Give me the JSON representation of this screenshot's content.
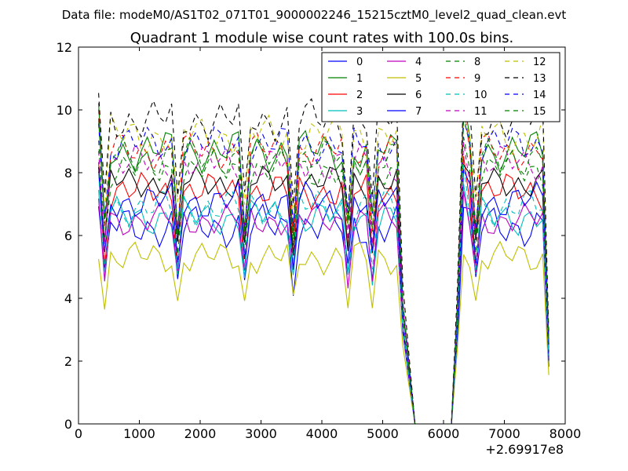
{
  "chart_data": {
    "type": "line",
    "suptitle": "Data file: modeM0/AS1T02_071T01_9000002246_15215cztM0_level2_quad_clean.evt",
    "title": "Quadrant 1 module wise count rates with 100.0s bins.",
    "xlabel": "",
    "ylabel": "",
    "x_offset_label": "+2.69917e8",
    "xlim": [
      0,
      8000
    ],
    "ylim": [
      0,
      12
    ],
    "x_ticks": [
      0,
      1000,
      2000,
      3000,
      4000,
      5000,
      6000,
      7000,
      8000
    ],
    "y_ticks": [
      0,
      2,
      4,
      6,
      8,
      10,
      12
    ],
    "x_tick_labels": [
      "0",
      "1000",
      "2000",
      "3000",
      "4000",
      "5000",
      "6000",
      "7000",
      "8000"
    ],
    "y_tick_labels": [
      "0",
      "2",
      "4",
      "6",
      "8",
      "10",
      "12"
    ],
    "grid": false,
    "legend_position": "top-right",
    "legend_columns": 4,
    "segments": [
      {
        "x_start": 330,
        "x_end": 5330,
        "step": 100
      },
      {
        "x_start": 5530,
        "x_end": 6130,
        "step": 100
      },
      {
        "x_start": 6230,
        "x_end": 7730,
        "step": 100
      }
    ],
    "series": [
      {
        "name": "0",
        "color": "#0000ff",
        "dash": "solid",
        "base": 6.3,
        "amp": 0.45,
        "phase": 0
      },
      {
        "name": "1",
        "color": "#008000",
        "dash": "solid",
        "base": 8.7,
        "amp": 0.45,
        "phase": 1
      },
      {
        "name": "2",
        "color": "#ff0000",
        "dash": "solid",
        "base": 7.4,
        "amp": 0.4,
        "phase": 2
      },
      {
        "name": "3",
        "color": "#00bfbf",
        "dash": "solid",
        "base": 6.6,
        "amp": 0.4,
        "phase": 3
      },
      {
        "name": "4",
        "color": "#bf00bf",
        "dash": "solid",
        "base": 6.5,
        "amp": 0.35,
        "phase": 4
      },
      {
        "name": "5",
        "color": "#bfbf00",
        "dash": "solid",
        "base": 5.3,
        "amp": 0.35,
        "phase": 5
      },
      {
        "name": "6",
        "color": "#000000",
        "dash": "solid",
        "base": 7.7,
        "amp": 0.35,
        "phase": 6
      },
      {
        "name": "7",
        "color": "#0000ff",
        "dash": "solid",
        "base": 7.1,
        "amp": 0.4,
        "phase": 7
      },
      {
        "name": "8",
        "color": "#008000",
        "dash": "dashed",
        "base": 8.1,
        "amp": 0.4,
        "phase": 8
      },
      {
        "name": "9",
        "color": "#ff0000",
        "dash": "dashed",
        "base": 8.7,
        "amp": 0.4,
        "phase": 9
      },
      {
        "name": "10",
        "color": "#00bfbf",
        "dash": "dashed",
        "base": 6.9,
        "amp": 0.4,
        "phase": 10
      },
      {
        "name": "11",
        "color": "#bf00bf",
        "dash": "dashed",
        "base": 8.3,
        "amp": 0.4,
        "phase": 11
      },
      {
        "name": "12",
        "color": "#bfbf00",
        "dash": "dashed",
        "base": 9.2,
        "amp": 0.45,
        "phase": 12
      },
      {
        "name": "13",
        "color": "#000000",
        "dash": "dashed",
        "base": 9.7,
        "amp": 0.45,
        "phase": 13
      },
      {
        "name": "14",
        "color": "#0000ff",
        "dash": "dashed",
        "base": 8.9,
        "amp": 0.4,
        "phase": 14
      },
      {
        "name": "15",
        "color": "#008000",
        "dash": "dashed",
        "base": 8.5,
        "amp": 0.4,
        "phase": 15
      }
    ],
    "special_points": {
      "low_dip_x": [
        430,
        1630,
        2730,
        3530,
        4430,
        4830,
        6530
      ],
      "low_dip_factor": 0.72,
      "first_point_boost": 1.1,
      "rise_last_x": 5330,
      "rise_last_factor": 0.45,
      "zero_window": [
        5530,
        6130
      ],
      "post_gap_start_x": 6230,
      "post_gap_start_factor": 0.45,
      "peak_x": 6330,
      "peak_factor": 1.12,
      "tail_last_x": 7730,
      "tail_last_factor": 0.3
    }
  }
}
